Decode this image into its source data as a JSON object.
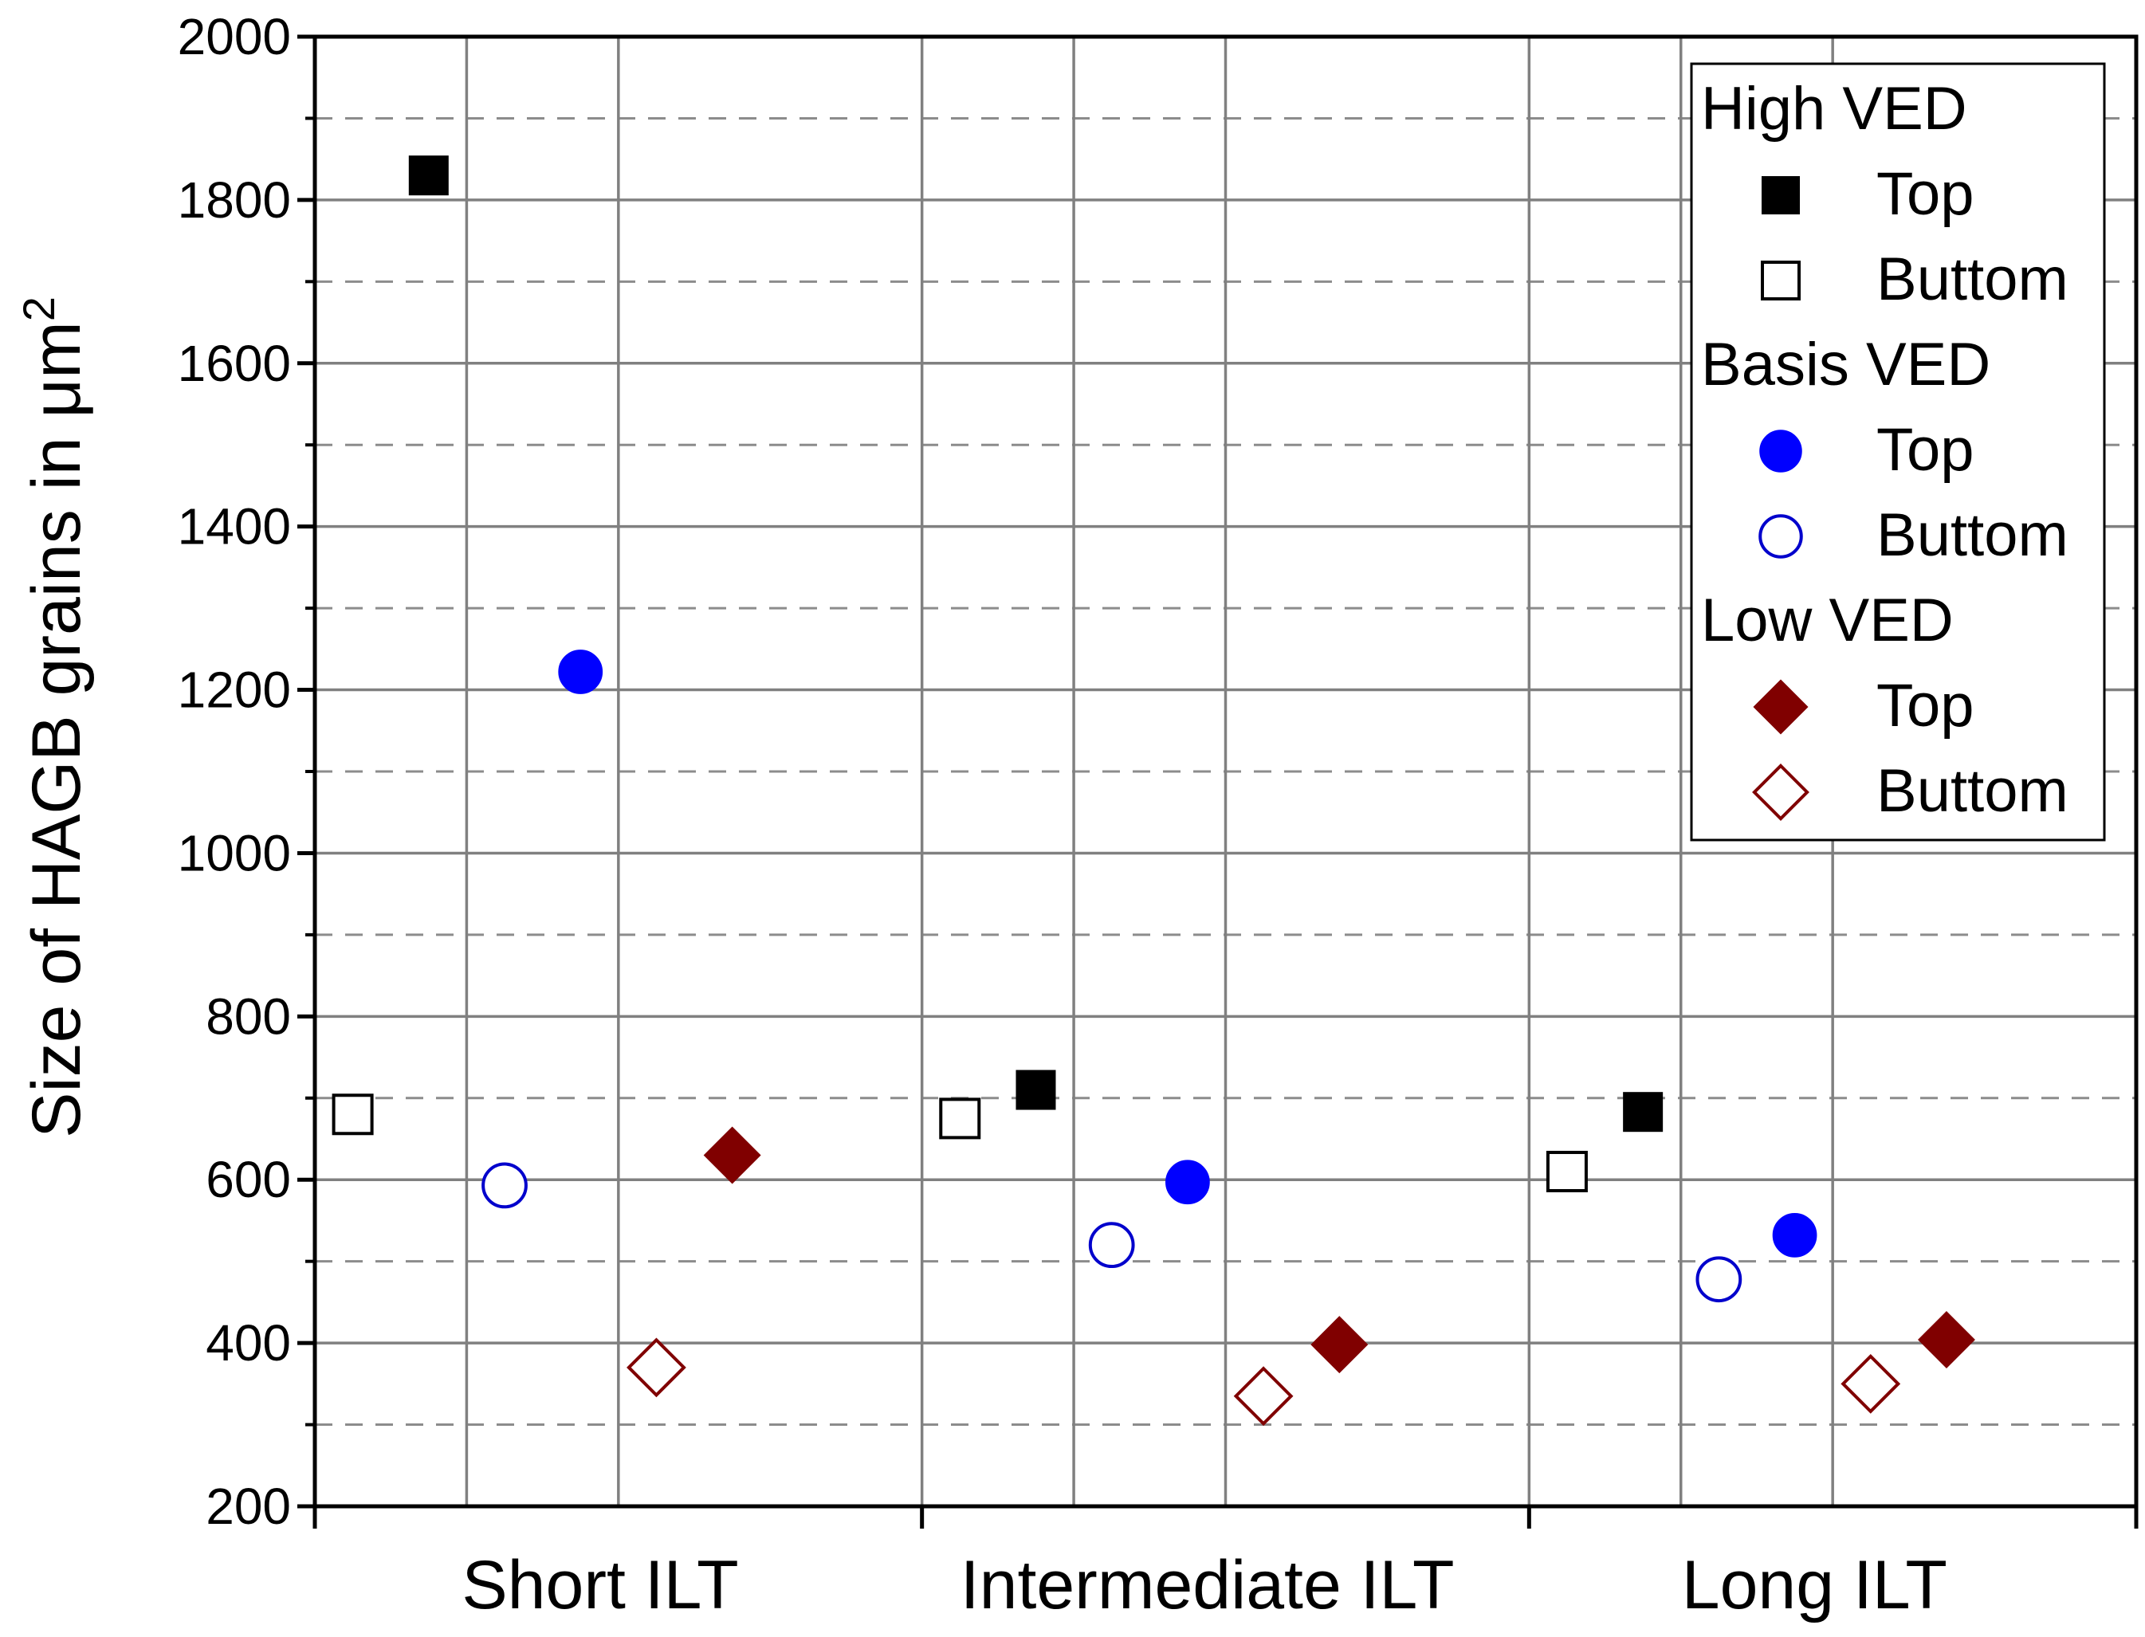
{
  "chart_data": {
    "type": "scatter",
    "categories": [
      "Short ILT",
      "Intermediate ILT",
      "Long ILT"
    ],
    "ylabel": "Size of HAGB grains in μm",
    "ylabel_sup": "2",
    "ylim": [
      200,
      2000
    ],
    "yticks": [
      "200",
      "400",
      "600",
      "800",
      "1000",
      "1200",
      "1400",
      "1600",
      "1800",
      "2000"
    ],
    "grid": true,
    "legend_position": "top-right",
    "legend_groups": [
      {
        "title": "High VED"
      },
      {
        "title": "Basis VED"
      },
      {
        "title": "Low VED"
      }
    ],
    "series": [
      {
        "name": "Top",
        "group": "High VED",
        "marker": "square",
        "filled": true,
        "color": "#000000",
        "values": [
          1830,
          710,
          683
        ]
      },
      {
        "name": "Buttom",
        "group": "High VED",
        "marker": "square",
        "filled": false,
        "color": "#000000",
        "values": [
          680,
          675,
          610
        ]
      },
      {
        "name": "Top",
        "group": "Basis VED",
        "marker": "circle",
        "filled": true,
        "color": "#0000ff",
        "values": [
          1222,
          597,
          532
        ]
      },
      {
        "name": "Buttom",
        "group": "Basis VED",
        "marker": "circle",
        "filled": false,
        "color": "#0000cc",
        "values": [
          593,
          520,
          478
        ]
      },
      {
        "name": "Top",
        "group": "Low VED",
        "marker": "diamond",
        "filled": true,
        "color": "#800000",
        "values": [
          630,
          398,
          404
        ]
      },
      {
        "name": "Buttom",
        "group": "Low VED",
        "marker": "diamond",
        "filled": false,
        "color": "#800000",
        "values": [
          370,
          335,
          350
        ]
      }
    ]
  }
}
